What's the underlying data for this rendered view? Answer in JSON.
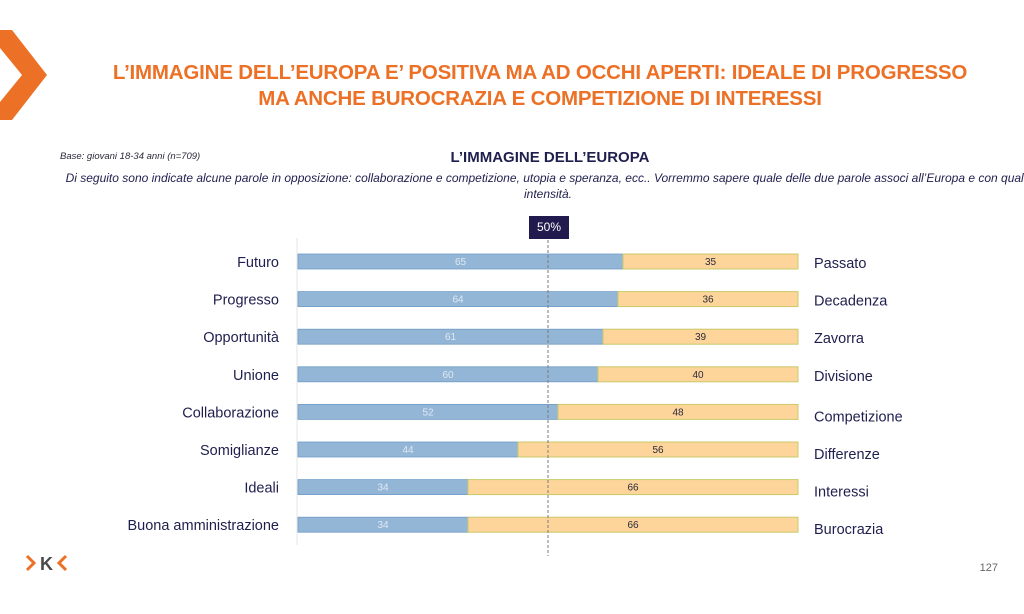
{
  "header": {
    "title_line1": "L’IMMAGINE DELL’EUROPA E’ POSITIVA MA AD OCCHI APERTI: IDEALE DI PROGRESSO",
    "title_line2": "MA ANCHE BUROCRAZIA E COMPETIZIONE DI INTERESSI"
  },
  "base_note": "Base: giovani 18-34 anni (n=709)",
  "question": "Di seguito sono indicate alcune parole in opposizione: collaborazione e competizione, utopia e speranza, ecc.. Vorremmo sapere quale delle due parole associ all’Europa e con quale intensità.",
  "marker_label": "50%",
  "page_number": "127",
  "colors": {
    "accent": "#ec7126",
    "left_bar": "#94b6d6",
    "right_bar": "#fdd59a",
    "text": "#1f1f4e",
    "marker_bg": "#211a4e"
  },
  "chart_data": {
    "type": "bar",
    "orientation": "horizontal",
    "stacked": true,
    "title": "L’IMMAGINE DELL’EUROPA",
    "xlim": [
      0,
      100
    ],
    "reference_line": 50,
    "grid": false,
    "categories_left": [
      "Futuro",
      "Progresso",
      "Opportunità",
      "Unione",
      "Collaborazione",
      "Somiglianze",
      "Ideali",
      "Buona amministrazione"
    ],
    "categories_right": [
      "Passato",
      "Decadenza",
      "Zavorra",
      "Divisione",
      "Competizione",
      "Differenze",
      "Interessi",
      "Burocrazia"
    ],
    "series": [
      {
        "name": "left",
        "values": [
          65,
          64,
          61,
          60,
          52,
          44,
          34,
          34
        ]
      },
      {
        "name": "right",
        "values": [
          35,
          36,
          39,
          40,
          48,
          56,
          66,
          66
        ]
      }
    ]
  }
}
